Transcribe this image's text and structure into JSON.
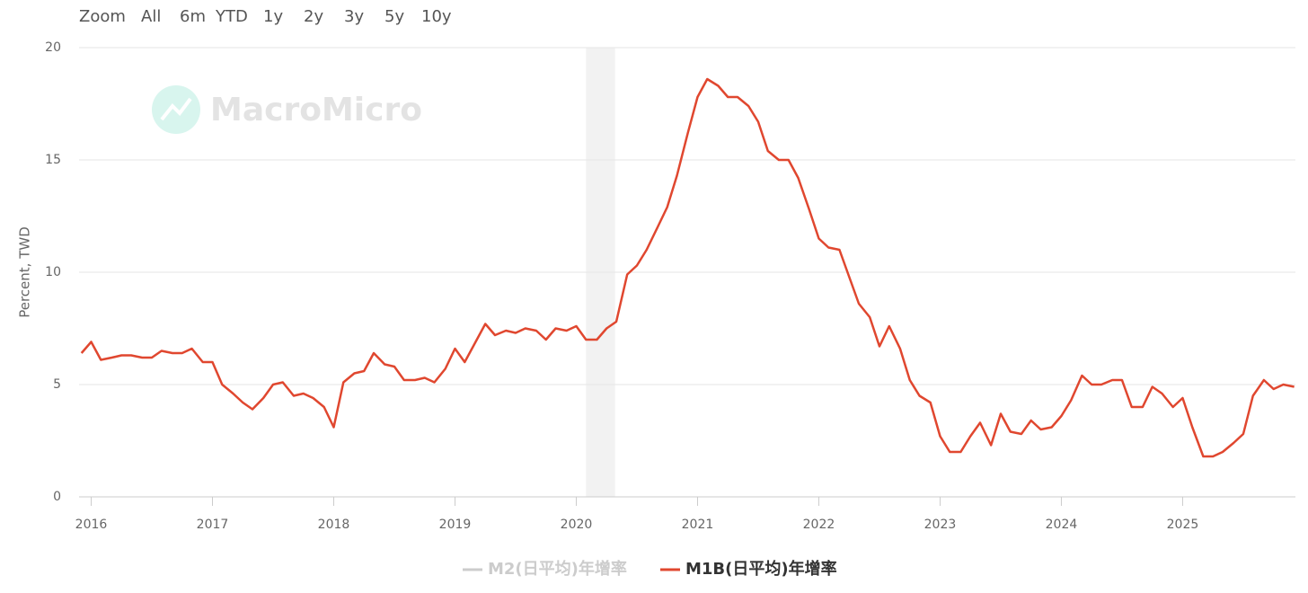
{
  "chart_data": {
    "type": "line",
    "range_selector": {
      "label": "Zoom",
      "buttons": [
        "All",
        "6m",
        "YTD",
        "1y",
        "2y",
        "3y",
        "5y",
        "10y"
      ],
      "selected": 8,
      "selected_color": "#4ee6c2"
    },
    "watermark": "MacroMicro",
    "y_label": "Percent, TWD",
    "xlim": [
      2015.9,
      2025.93
    ],
    "xticks": [
      2016,
      2017,
      2018,
      2019,
      2020,
      2021,
      2022,
      2023,
      2024,
      2025
    ],
    "ylim": [
      0,
      20
    ],
    "yticks": [
      0,
      5,
      10,
      15,
      20
    ],
    "grid": true,
    "bands": [
      {
        "from": 2020.08,
        "to": 2020.32,
        "color": "#f2f2f2"
      }
    ],
    "x": [
      2015.92,
      2016.0,
      2016.08,
      2016.17,
      2016.25,
      2016.33,
      2016.42,
      2016.5,
      2016.58,
      2016.67,
      2016.75,
      2016.83,
      2016.92,
      2017.0,
      2017.08,
      2017.17,
      2017.25,
      2017.33,
      2017.42,
      2017.5,
      2017.58,
      2017.67,
      2017.75,
      2017.83,
      2017.92,
      2018.0,
      2018.08,
      2018.17,
      2018.25,
      2018.33,
      2018.42,
      2018.5,
      2018.58,
      2018.67,
      2018.75,
      2018.83,
      2018.92,
      2019.0,
      2019.08,
      2019.17,
      2019.25,
      2019.33,
      2019.42,
      2019.5,
      2019.58,
      2019.67,
      2019.75,
      2019.83,
      2019.92,
      2020.0,
      2020.08,
      2020.17,
      2020.25,
      2020.33,
      2020.42,
      2020.5,
      2020.58,
      2020.67,
      2020.75,
      2020.83,
      2020.92,
      2021.0,
      2021.08,
      2021.17,
      2021.25,
      2021.33,
      2021.42,
      2021.5,
      2021.58,
      2021.67,
      2021.75,
      2021.83,
      2021.92,
      2022.0,
      2022.08,
      2022.17,
      2022.25,
      2022.33,
      2022.42,
      2022.5,
      2022.58,
      2022.67,
      2022.75,
      2022.83,
      2022.92,
      2023.0,
      2023.08,
      2023.17,
      2023.25,
      2023.33,
      2023.42,
      2023.5,
      2023.58,
      2023.67,
      2023.75,
      2023.83,
      2023.92,
      2024.0,
      2024.08,
      2024.17,
      2024.25,
      2024.33,
      2024.42,
      2024.5,
      2024.58,
      2024.67,
      2024.75,
      2024.83,
      2024.92,
      2025.0,
      2025.08,
      2025.17,
      2025.25,
      2025.33,
      2025.42,
      2025.5,
      2025.58,
      2025.67,
      2025.75,
      2025.83,
      2025.92
    ],
    "series": [
      {
        "name": "M2(日平均)年增率",
        "color": "#cccccc",
        "visible": false
      },
      {
        "name": "M1B(日平均)年增率",
        "color": "#e0472f",
        "visible": true,
        "values": [
          6.4,
          6.9,
          6.1,
          6.2,
          6.3,
          6.3,
          6.2,
          6.2,
          6.5,
          6.4,
          6.4,
          6.6,
          6.0,
          6.0,
          5.0,
          4.6,
          4.2,
          3.9,
          4.4,
          5.0,
          5.1,
          4.5,
          4.6,
          4.4,
          4.0,
          3.1,
          5.1,
          5.5,
          5.6,
          6.4,
          5.9,
          5.8,
          5.2,
          5.2,
          5.3,
          5.1,
          5.7,
          6.6,
          6.0,
          6.9,
          7.7,
          7.2,
          7.4,
          7.3,
          7.5,
          7.4,
          7.0,
          7.5,
          7.4,
          7.6,
          7.0,
          7.0,
          7.5,
          7.8,
          9.9,
          10.3,
          11.0,
          12.0,
          12.9,
          14.3,
          16.2,
          17.8,
          18.6,
          18.3,
          17.8,
          17.8,
          17.4,
          16.7,
          15.4,
          15.0,
          15.0,
          14.2,
          12.8,
          11.5,
          11.1,
          11.0,
          9.8,
          8.6,
          8.0,
          6.7,
          7.6,
          6.6,
          5.2,
          4.5,
          4.2,
          2.7,
          2.0,
          2.0,
          2.7,
          3.3,
          2.3,
          3.7,
          2.9,
          2.8,
          3.4,
          3.0,
          3.1,
          3.6,
          4.3,
          5.4,
          5.0,
          5.0,
          5.2,
          5.2,
          4.0,
          4.0,
          4.9,
          4.6,
          4.0,
          4.4,
          3.1,
          1.8,
          1.8,
          2.0,
          2.4,
          2.8,
          4.5,
          5.2,
          4.8,
          5.0,
          4.9
        ]
      }
    ]
  }
}
